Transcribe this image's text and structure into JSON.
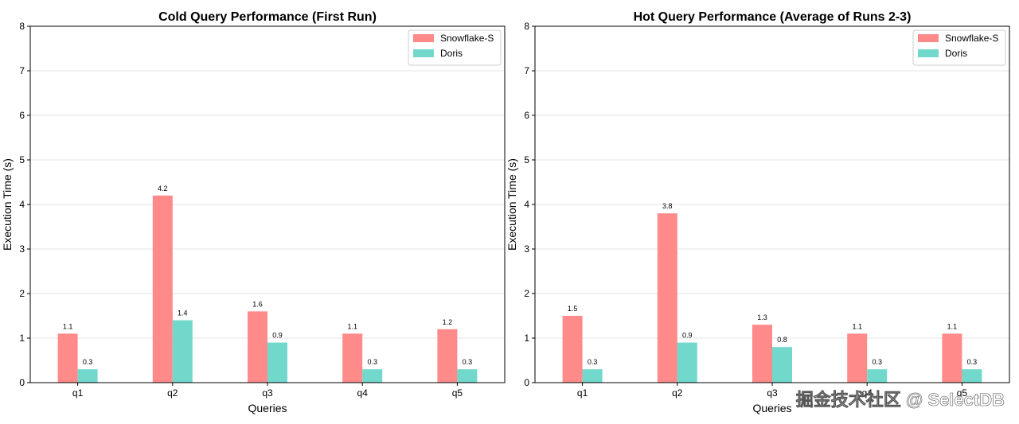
{
  "chart_data": [
    {
      "type": "bar",
      "title": "Cold Query Performance (First Run)",
      "xlabel": "Queries",
      "ylabel": "Execution Time (s)",
      "categories": [
        "q1",
        "q2",
        "q3",
        "q4",
        "q5"
      ],
      "ylim": [
        0,
        8
      ],
      "yticks": [
        "0",
        "1",
        "2",
        "3",
        "4",
        "5",
        "6",
        "7",
        "8"
      ],
      "grid": "horizontal",
      "legend_position": "top-right",
      "series": [
        {
          "name": "Snowflake-S",
          "color": "#ff8a8a",
          "values": [
            1.1,
            4.2,
            1.6,
            1.1,
            1.2
          ],
          "labels": [
            "1.1",
            "4.2",
            "1.6",
            "1.1",
            "1.2"
          ]
        },
        {
          "name": "Doris",
          "color": "#72d8cc",
          "values": [
            0.3,
            1.4,
            0.9,
            0.3,
            0.3
          ],
          "labels": [
            "0.3",
            "1.4",
            "0.9",
            "0.3",
            "0.3"
          ]
        }
      ]
    },
    {
      "type": "bar",
      "title": "Hot Query Performance (Average of Runs 2-3)",
      "xlabel": "Queries",
      "ylabel": "Execution Time (s)",
      "categories": [
        "q1",
        "q2",
        "q3",
        "q4",
        "q5"
      ],
      "ylim": [
        0,
        8
      ],
      "yticks": [
        "0",
        "1",
        "2",
        "3",
        "4",
        "5",
        "6",
        "7",
        "8"
      ],
      "grid": "horizontal",
      "legend_position": "top-right",
      "series": [
        {
          "name": "Snowflake-S",
          "color": "#ff8a8a",
          "values": [
            1.5,
            3.8,
            1.3,
            1.1,
            1.1
          ],
          "labels": [
            "1.5",
            "3.8",
            "1.3",
            "1.1",
            "1.1"
          ]
        },
        {
          "name": "Doris",
          "color": "#72d8cc",
          "values": [
            0.3,
            0.9,
            0.8,
            0.3,
            0.3
          ],
          "labels": [
            "0.3",
            "0.9",
            "0.8",
            "0.3",
            "0.3"
          ]
        }
      ]
    }
  ],
  "watermark": {
    "text": "掘金技术社区 @ SelectDB"
  }
}
